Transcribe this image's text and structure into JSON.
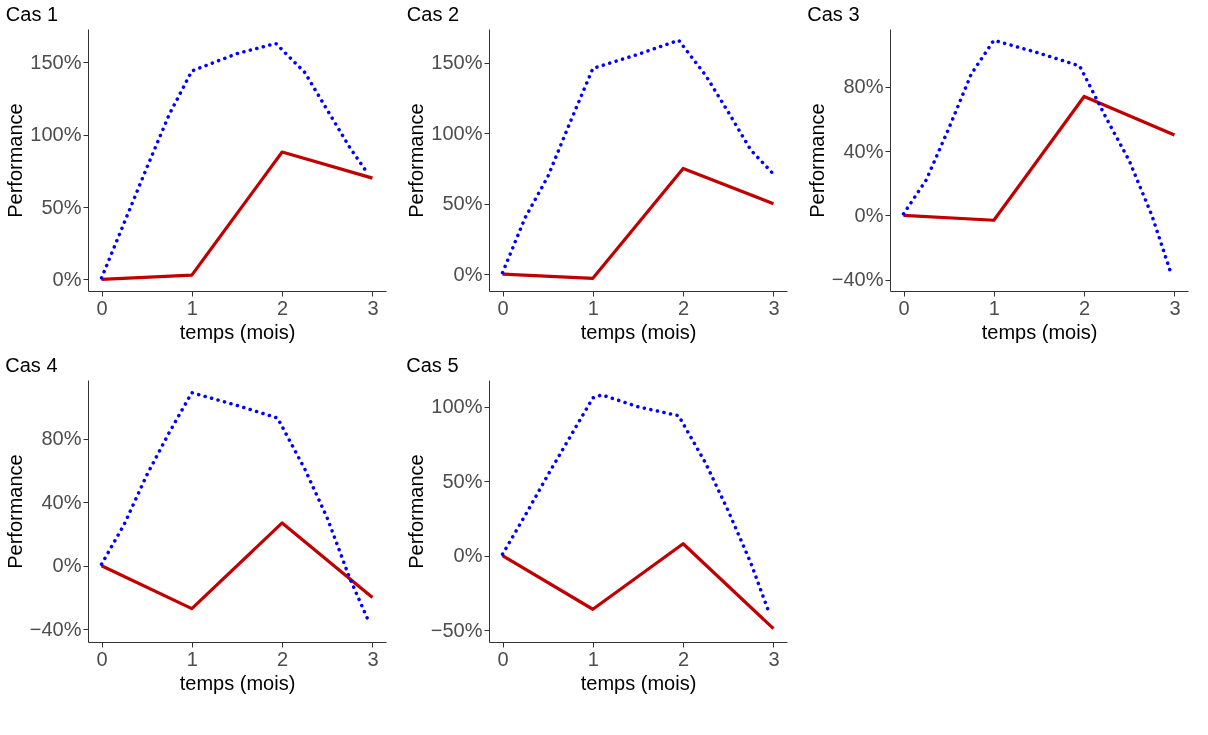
{
  "chart_data": [
    {
      "type": "line",
      "title": "Cas 1",
      "xlabel": "temps (mois)",
      "ylabel": "Performance",
      "xlim": [
        -0.15,
        3.15
      ],
      "xticks": [
        0,
        1,
        2,
        3
      ],
      "ylim": [
        -8,
        173
      ],
      "yticks": [
        {
          "value": 0,
          "label": "0%"
        },
        {
          "value": 50,
          "label": "50%"
        },
        {
          "value": 100,
          "label": "100%"
        },
        {
          "value": 150,
          "label": "150%"
        }
      ],
      "grid": false,
      "series": [
        {
          "color": "#c00000",
          "line_style": "solid",
          "x": [
            0,
            1,
            2,
            3
          ],
          "values": [
            0,
            3,
            88,
            70
          ]
        },
        {
          "color": "#0000ff",
          "line_style": "dotted",
          "x": [
            0,
            0.25,
            0.5,
            0.75,
            1,
            1.5,
            1.93,
            2.25,
            2.5,
            2.75,
            2.95
          ],
          "values": [
            1,
            39,
            77,
            114,
            144,
            156,
            163,
            143,
            117,
            91,
            73
          ]
        }
      ]
    },
    {
      "type": "line",
      "title": "Cas 2",
      "xlabel": "temps (mois)",
      "ylabel": "Performance",
      "xlim": [
        -0.15,
        3.15
      ],
      "xticks": [
        0,
        1,
        2,
        3
      ],
      "ylim": [
        -12,
        174
      ],
      "yticks": [
        {
          "value": 0,
          "label": "0%"
        },
        {
          "value": 50,
          "label": "50%"
        },
        {
          "value": 100,
          "label": "100%"
        },
        {
          "value": 150,
          "label": "150%"
        }
      ],
      "grid": false,
      "series": [
        {
          "color": "#c00000",
          "line_style": "solid",
          "x": [
            0,
            1,
            2,
            3
          ],
          "values": [
            0,
            -3,
            75,
            50
          ]
        },
        {
          "color": "#0000ff",
          "line_style": "dotted",
          "x": [
            0,
            0.25,
            0.5,
            0.75,
            1,
            1.5,
            1.95,
            2.25,
            2.5,
            2.75,
            3
          ],
          "values": [
            1,
            40,
            69,
            108,
            146,
            156,
            166,
            141,
            115,
            88,
            71
          ]
        }
      ]
    },
    {
      "type": "line",
      "title": "Cas 3",
      "xlabel": "temps (mois)",
      "ylabel": "Performance",
      "xlim": [
        -0.15,
        3.15
      ],
      "xticks": [
        0,
        1,
        2,
        3
      ],
      "ylim": [
        -47,
        116
      ],
      "yticks": [
        {
          "value": -40,
          "label": "−40%"
        },
        {
          "value": 0,
          "label": "0%"
        },
        {
          "value": 40,
          "label": "40%"
        },
        {
          "value": 80,
          "label": "80%"
        }
      ],
      "grid": false,
      "series": [
        {
          "color": "#c00000",
          "line_style": "solid",
          "x": [
            0,
            1,
            2,
            3
          ],
          "values": [
            0,
            -3,
            74,
            50
          ]
        },
        {
          "color": "#0000ff",
          "line_style": "dotted",
          "x": [
            0,
            0.25,
            0.5,
            0.75,
            1,
            1.5,
            1.95,
            2.25,
            2.5,
            2.75,
            2.95
          ],
          "values": [
            1,
            22,
            54,
            88,
            109,
            101,
            93,
            60,
            34,
            0,
            -34
          ]
        }
      ]
    },
    {
      "type": "line",
      "title": "Cas 4",
      "xlabel": "temps (mois)",
      "ylabel": "Performance",
      "xlim": [
        -0.15,
        3.15
      ],
      "xticks": [
        0,
        1,
        2,
        3
      ],
      "ylim": [
        -48,
        117
      ],
      "yticks": [
        {
          "value": -40,
          "label": "−40%"
        },
        {
          "value": 0,
          "label": "0%"
        },
        {
          "value": 40,
          "label": "40%"
        },
        {
          "value": 80,
          "label": "80%"
        }
      ],
      "grid": false,
      "series": [
        {
          "color": "#c00000",
          "line_style": "solid",
          "x": [
            0,
            1,
            2,
            3
          ],
          "values": [
            0,
            -27,
            27,
            -20
          ]
        },
        {
          "color": "#0000ff",
          "line_style": "dotted",
          "x": [
            0,
            0.25,
            0.5,
            0.75,
            1,
            1.5,
            1.95,
            2.25,
            2.5,
            2.75,
            2.95
          ],
          "values": [
            1,
            26,
            57,
            84,
            109,
            101,
            93,
            61,
            30,
            -8,
            -34
          ]
        }
      ]
    },
    {
      "type": "line",
      "title": "Cas 5",
      "xlabel": "temps (mois)",
      "ylabel": "Performance",
      "xlim": [
        -0.15,
        3.15
      ],
      "xticks": [
        0,
        1,
        2,
        3
      ],
      "ylim": [
        -58,
        118
      ],
      "yticks": [
        {
          "value": -50,
          "label": "−50%"
        },
        {
          "value": 0,
          "label": "0%"
        },
        {
          "value": 50,
          "label": "50%"
        },
        {
          "value": 100,
          "label": "100%"
        }
      ],
      "grid": false,
      "series": [
        {
          "color": "#c00000",
          "line_style": "solid",
          "x": [
            0,
            1,
            2,
            3
          ],
          "values": [
            0,
            -36,
            8,
            -49
          ]
        },
        {
          "color": "#0000ff",
          "line_style": "dotted",
          "x": [
            0,
            0.25,
            0.5,
            0.75,
            1,
            1.1,
            1.5,
            1.95,
            2.25,
            2.5,
            2.75,
            2.95
          ],
          "values": [
            1,
            27,
            54,
            80,
            106,
            108,
            100,
            94,
            62,
            30,
            -5,
            -38
          ]
        }
      ]
    }
  ]
}
